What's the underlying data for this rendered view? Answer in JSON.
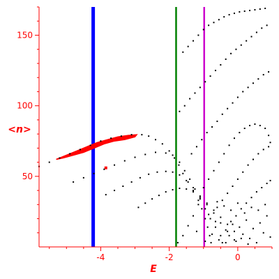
{
  "chart_data": {
    "type": "scatter",
    "xlabel": "E",
    "ylabel": "<n>",
    "xlim": [
      -5.8,
      1.0
    ],
    "ylim": [
      0,
      170
    ],
    "grid": false,
    "axis_color": "#ff0000",
    "x_ticks": [
      {
        "value": -4,
        "label": "-4"
      },
      {
        "value": -2,
        "label": "-2"
      },
      {
        "value": 0,
        "label": "0"
      }
    ],
    "y_ticks": [
      {
        "value": 50,
        "label": "50"
      },
      {
        "value": 100,
        "label": "100"
      },
      {
        "value": 150,
        "label": "150"
      }
    ],
    "vertical_lines": [
      {
        "x": -4.22,
        "color": "#0000ff"
      },
      {
        "x": -1.8,
        "color": "#008000"
      },
      {
        "x": -0.98,
        "color": "#cc00cc"
      }
    ],
    "band": {
      "color": "#ff0000",
      "points": [
        [
          -5.3,
          62
        ],
        [
          -5.0,
          65
        ],
        [
          -4.7,
          68
        ],
        [
          -4.4,
          71
        ],
        [
          -4.1,
          74
        ],
        [
          -3.8,
          76
        ],
        [
          -3.5,
          78
        ],
        [
          -3.2,
          79
        ],
        [
          -2.95,
          79.5
        ],
        [
          -3.0,
          78
        ],
        [
          -3.3,
          76
        ],
        [
          -3.6,
          75
        ],
        [
          -3.9,
          73
        ],
        [
          -4.2,
          70
        ],
        [
          -4.5,
          67
        ],
        [
          -4.8,
          65
        ],
        [
          -5.1,
          63
        ],
        [
          -5.3,
          62
        ]
      ],
      "isolated": [
        [
          -3.85,
          56
        ]
      ]
    },
    "series": [
      {
        "color": "#000000",
        "points": [
          [
            -5.8,
            57
          ],
          [
            -5.5,
            60
          ],
          [
            -5.2,
            63
          ],
          [
            -4.9,
            66
          ],
          [
            -4.6,
            69
          ],
          [
            -4.3,
            72
          ],
          [
            -4.0,
            75
          ],
          [
            -3.7,
            77
          ],
          [
            -3.4,
            78.5
          ],
          [
            -3.1,
            79.5
          ],
          [
            -2.8,
            79.5
          ],
          [
            -2.6,
            78.5
          ],
          [
            -2.4,
            76
          ],
          [
            -2.2,
            73
          ],
          [
            -2.0,
            68
          ],
          [
            -1.85,
            63
          ],
          [
            -1.72,
            58
          ],
          [
            -1.6,
            52
          ],
          [
            -1.45,
            46
          ],
          [
            -1.3,
            40
          ],
          [
            -1.15,
            33
          ],
          [
            -1.05,
            27
          ],
          [
            -0.95,
            20
          ],
          [
            -0.88,
            14
          ],
          [
            -0.82,
            8
          ],
          [
            -0.78,
            3
          ]
        ]
      },
      {
        "color": "#000000",
        "points": [
          [
            -4.8,
            46
          ],
          [
            -4.5,
            49
          ],
          [
            -4.2,
            52
          ],
          [
            -3.9,
            55
          ],
          [
            -3.6,
            58
          ],
          [
            -3.3,
            61
          ],
          [
            -3.0,
            63.5
          ],
          [
            -2.7,
            65.5
          ],
          [
            -2.4,
            67
          ],
          [
            -2.1,
            66.5
          ],
          [
            -1.9,
            65
          ],
          [
            -1.7,
            60
          ],
          [
            -1.55,
            54
          ],
          [
            -1.4,
            48
          ],
          [
            -1.25,
            41
          ],
          [
            -1.1,
            34
          ],
          [
            -0.95,
            27
          ],
          [
            -0.8,
            20
          ],
          [
            -0.65,
            14
          ],
          [
            -0.5,
            8
          ],
          [
            -0.35,
            3
          ]
        ]
      },
      {
        "color": "#000000",
        "points": [
          [
            -3.85,
            37
          ],
          [
            -3.6,
            40
          ],
          [
            -3.35,
            43
          ],
          [
            -3.1,
            46
          ],
          [
            -2.85,
            49
          ],
          [
            -2.6,
            51.5
          ],
          [
            -2.35,
            53
          ],
          [
            -2.1,
            53.5
          ],
          [
            -1.9,
            53
          ],
          [
            -1.7,
            51
          ],
          [
            -1.5,
            47
          ],
          [
            -1.3,
            42
          ],
          [
            -1.1,
            36
          ],
          [
            -0.9,
            30
          ],
          [
            -0.7,
            24
          ],
          [
            -0.5,
            17
          ],
          [
            -0.3,
            11
          ],
          [
            -0.1,
            5
          ]
        ]
      },
      {
        "color": "#000000",
        "points": [
          [
            -2.9,
            28
          ],
          [
            -2.7,
            31
          ],
          [
            -2.5,
            34
          ],
          [
            -2.3,
            36.5
          ],
          [
            -2.1,
            39
          ],
          [
            -1.9,
            40.5
          ],
          [
            -1.7,
            41.5
          ],
          [
            -1.5,
            41
          ],
          [
            -1.3,
            39
          ],
          [
            -1.1,
            35
          ],
          [
            -0.9,
            31
          ],
          [
            -0.7,
            26
          ],
          [
            -0.5,
            21
          ],
          [
            -0.3,
            16
          ],
          [
            -0.1,
            11
          ],
          [
            0.1,
            6
          ],
          [
            0.3,
            2
          ]
        ]
      },
      {
        "color": "#000000",
        "points": [
          [
            -1.6,
            138
          ],
          [
            -1.45,
            142
          ],
          [
            -1.3,
            146
          ],
          [
            -1.15,
            150
          ],
          [
            -1.0,
            154
          ],
          [
            -0.85,
            157
          ],
          [
            -0.7,
            159
          ],
          [
            -0.55,
            161
          ],
          [
            -0.4,
            163
          ],
          [
            -0.25,
            164.5
          ],
          [
            -0.1,
            165.5
          ],
          [
            0.05,
            166.5
          ],
          [
            0.2,
            167
          ],
          [
            0.35,
            167.5
          ],
          [
            0.5,
            168
          ],
          [
            0.65,
            168.5
          ],
          [
            0.8,
            169
          ]
        ]
      },
      {
        "color": "#000000",
        "points": [
          [
            -1.7,
            96
          ],
          [
            -1.55,
            100
          ],
          [
            -1.4,
            105
          ],
          [
            -1.25,
            109
          ],
          [
            -1.1,
            113
          ],
          [
            -0.95,
            117
          ],
          [
            -0.8,
            121
          ],
          [
            -0.65,
            125
          ],
          [
            -0.5,
            129
          ],
          [
            -0.35,
            133
          ],
          [
            -0.2,
            137
          ],
          [
            -0.05,
            140
          ],
          [
            0.1,
            143
          ],
          [
            0.25,
            146
          ],
          [
            0.4,
            149
          ],
          [
            0.55,
            152
          ],
          [
            0.7,
            155
          ],
          [
            0.85,
            157
          ]
        ]
      },
      {
        "color": "#000000",
        "points": [
          [
            -1.35,
            66
          ],
          [
            -1.2,
            71
          ],
          [
            -1.05,
            76
          ],
          [
            -0.9,
            81
          ],
          [
            -0.75,
            85
          ],
          [
            -0.6,
            89
          ],
          [
            -0.45,
            94
          ],
          [
            -0.3,
            98
          ],
          [
            -0.15,
            102
          ],
          [
            0.0,
            106
          ],
          [
            0.15,
            110
          ],
          [
            0.3,
            113
          ],
          [
            0.45,
            116
          ],
          [
            0.6,
            119
          ],
          [
            0.75,
            122
          ],
          [
            0.9,
            124
          ]
        ]
      },
      {
        "color": "#000000",
        "points": [
          [
            -1.0,
            42
          ],
          [
            -0.85,
            48
          ],
          [
            -0.7,
            54
          ],
          [
            -0.55,
            60
          ],
          [
            -0.4,
            66
          ],
          [
            -0.25,
            72
          ],
          [
            -0.1,
            77
          ],
          [
            0.05,
            81
          ],
          [
            0.2,
            84
          ],
          [
            0.35,
            86
          ],
          [
            0.5,
            87
          ],
          [
            0.65,
            86
          ],
          [
            0.8,
            84
          ],
          [
            0.9,
            79
          ],
          [
            0.95,
            74
          ]
        ]
      },
      {
        "color": "#000000",
        "points": [
          [
            -0.6,
            28
          ],
          [
            -0.45,
            33
          ],
          [
            -0.3,
            38
          ],
          [
            -0.15,
            43
          ],
          [
            0.0,
            48
          ],
          [
            0.15,
            53
          ],
          [
            0.3,
            58
          ],
          [
            0.45,
            62
          ],
          [
            0.6,
            66
          ],
          [
            0.75,
            69
          ],
          [
            0.9,
            71
          ]
        ]
      },
      {
        "color": "#000000",
        "points": [
          [
            -0.2,
            18
          ],
          [
            -0.05,
            22
          ],
          [
            0.1,
            27
          ],
          [
            0.25,
            31
          ],
          [
            0.4,
            35
          ],
          [
            0.55,
            39
          ],
          [
            0.7,
            42
          ],
          [
            0.85,
            45
          ],
          [
            0.95,
            47
          ]
        ]
      },
      {
        "color": "#000000",
        "points": [
          [
            -0.55,
            5
          ],
          [
            -0.45,
            3
          ],
          [
            -0.35,
            12
          ],
          [
            -0.25,
            8
          ],
          [
            -0.15,
            16
          ],
          [
            -0.05,
            4
          ],
          [
            0.05,
            14
          ],
          [
            0.15,
            9
          ],
          [
            0.25,
            19
          ],
          [
            0.35,
            6
          ],
          [
            0.45,
            13
          ],
          [
            0.55,
            3
          ],
          [
            0.65,
            17
          ],
          [
            0.75,
            10
          ],
          [
            0.85,
            22
          ],
          [
            0.95,
            7
          ],
          [
            -0.65,
            18
          ],
          [
            -0.75,
            9
          ],
          [
            -0.85,
            23
          ],
          [
            -0.6,
            32
          ],
          [
            -0.4,
            29
          ],
          [
            -0.2,
            26
          ],
          [
            0.0,
            31
          ],
          [
            0.2,
            24
          ],
          [
            0.4,
            28
          ],
          [
            0.6,
            26
          ],
          [
            0.8,
            30
          ],
          [
            -1.15,
            30
          ],
          [
            -1.3,
            22
          ],
          [
            -1.45,
            15
          ],
          [
            -1.6,
            8
          ],
          [
            -1.75,
            3
          ],
          [
            -1.2,
            11
          ],
          [
            -0.95,
            4
          ]
        ]
      }
    ]
  }
}
